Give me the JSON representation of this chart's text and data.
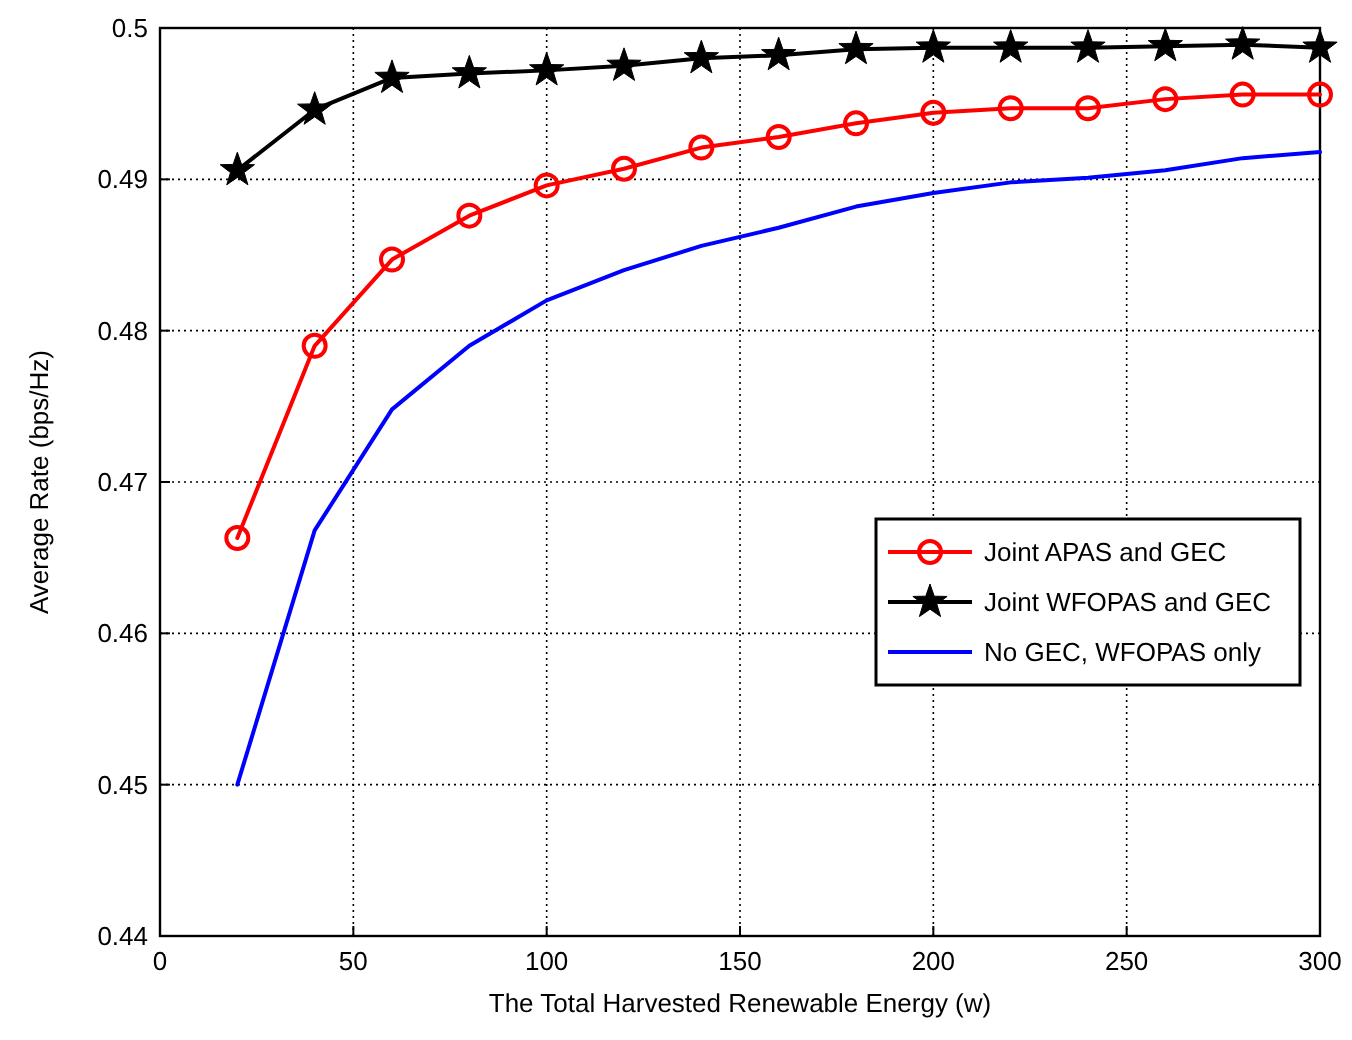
{
  "chart_data": {
    "type": "line",
    "xlabel": "The Total Harvested Renewable Energy (w)",
    "ylabel": "Average Rate (bps/Hz)",
    "x": [
      20,
      40,
      60,
      80,
      100,
      120,
      140,
      160,
      180,
      200,
      220,
      240,
      260,
      280,
      300
    ],
    "xlim": [
      0,
      300
    ],
    "xticks": [
      0,
      50,
      100,
      150,
      200,
      250,
      300
    ],
    "ylim": [
      0.44,
      0.5
    ],
    "yticks": [
      0.44,
      0.45,
      0.46,
      0.47,
      0.48,
      0.49,
      {
        "value": 0.5,
        "label": "0.5"
      }
    ],
    "grid": true,
    "legend": "right",
    "series": [
      {
        "name": "Joint APAS and GEC",
        "color": "#ff0000",
        "marker": "circle",
        "values": [
          0.4663,
          0.479,
          0.4847,
          0.4876,
          0.4896,
          0.4907,
          0.4921,
          0.4928,
          0.4937,
          0.4944,
          0.4947,
          0.4947,
          0.4953,
          0.4956,
          0.4956
        ]
      },
      {
        "name": "Joint WFOPAS and GEC",
        "color": "#000000",
        "marker": "star",
        "values": [
          0.4906,
          0.4946,
          0.4967,
          0.497,
          0.4972,
          0.4975,
          0.498,
          0.4982,
          0.4986,
          0.4987,
          0.4987,
          0.4987,
          0.4988,
          0.4989,
          0.4987
        ]
      },
      {
        "name": "No GEC, WFOPAS only",
        "color": "#0000ff",
        "marker": "none",
        "values": [
          0.45,
          0.4668,
          0.4748,
          0.479,
          0.482,
          0.484,
          0.4856,
          0.4868,
          0.4882,
          0.4891,
          0.4898,
          0.4901,
          0.4906,
          0.4914,
          0.4918
        ]
      }
    ]
  }
}
